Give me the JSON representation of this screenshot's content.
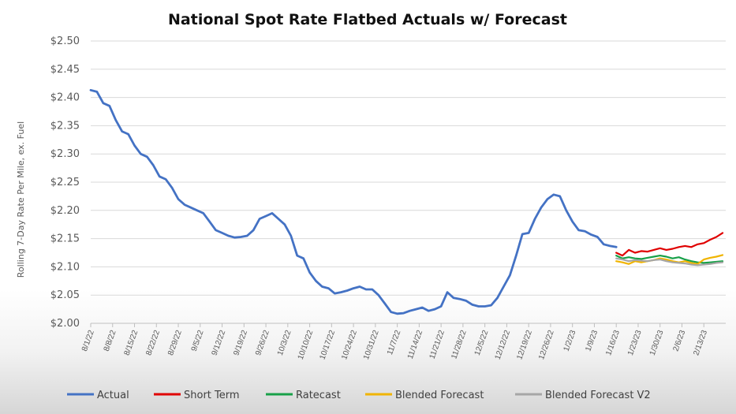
{
  "chart_data": {
    "type": "line",
    "title": "National Spot Rate Flatbed Actuals w/ Forecast",
    "xlabel": "",
    "ylabel": "Rolling 7-Day Rate Per Mile, ex. Fuel",
    "ylim": [
      2.0,
      2.5
    ],
    "yticks": [
      2.0,
      2.05,
      2.1,
      2.15,
      2.2,
      2.25,
      2.3,
      2.35,
      2.4,
      2.45,
      2.5
    ],
    "ytick_labels": [
      "$2.00",
      "$2.05",
      "$2.10",
      "$2.15",
      "$2.20",
      "$2.25",
      "$2.30",
      "$2.35",
      "$2.40",
      "$2.45",
      "$2.50"
    ],
    "x_start": "8/1/22",
    "x_end_day": 203,
    "xtick_days": [
      0,
      7,
      14,
      21,
      28,
      35,
      42,
      49,
      56,
      63,
      70,
      77,
      84,
      91,
      98,
      105,
      112,
      119,
      126,
      133,
      140,
      147,
      154,
      161,
      168,
      175,
      182,
      189,
      196
    ],
    "xtick_labels": [
      "8/1/22",
      "8/8/22",
      "8/15/22",
      "8/22/22",
      "8/29/22",
      "9/5/22",
      "9/12/22",
      "9/19/22",
      "9/26/22",
      "10/3/22",
      "10/10/22",
      "10/17/22",
      "10/24/22",
      "10/31/22",
      "11/7/22",
      "11/14/22",
      "11/21/22",
      "11/28/22",
      "12/5/22",
      "12/12/22",
      "12/19/22",
      "12/26/22",
      "1/2/23",
      "1/9/23",
      "1/16/23",
      "1/23/23",
      "1/30/23",
      "2/6/23",
      "2/13/23"
    ],
    "grid": true,
    "legend_position": "bottom",
    "series": [
      {
        "name": "Actual",
        "color": "#4472C4",
        "x": [
          0,
          2,
          4,
          6,
          8,
          10,
          12,
          14,
          16,
          18,
          20,
          22,
          24,
          26,
          28,
          30,
          32,
          34,
          36,
          38,
          40,
          42,
          44,
          46,
          48,
          50,
          52,
          54,
          56,
          58,
          60,
          62,
          64,
          66,
          68,
          70,
          72,
          74,
          76,
          78,
          80,
          82,
          84,
          86,
          88,
          90,
          92,
          94,
          96,
          98,
          100,
          102,
          104,
          106,
          108,
          110,
          112,
          114,
          116,
          118,
          120,
          122,
          124,
          126,
          128,
          130,
          132,
          134,
          136,
          138,
          140,
          142,
          144,
          146,
          148,
          150,
          152,
          154,
          156,
          158,
          160,
          162,
          164,
          166,
          168
        ],
        "values": [
          2.413,
          2.41,
          2.39,
          2.385,
          2.36,
          2.34,
          2.335,
          2.315,
          2.3,
          2.295,
          2.28,
          2.26,
          2.255,
          2.24,
          2.22,
          2.21,
          2.205,
          2.2,
          2.195,
          2.18,
          2.165,
          2.16,
          2.155,
          2.152,
          2.153,
          2.155,
          2.165,
          2.185,
          2.19,
          2.195,
          2.185,
          2.175,
          2.155,
          2.12,
          2.115,
          2.09,
          2.075,
          2.065,
          2.062,
          2.053,
          2.055,
          2.058,
          2.062,
          2.065,
          2.06,
          2.06,
          2.05,
          2.035,
          2.02,
          2.017,
          2.018,
          2.022,
          2.025,
          2.028,
          2.022,
          2.025,
          2.03,
          2.055,
          2.045,
          2.043,
          2.04,
          2.033,
          2.03,
          2.03,
          2.032,
          2.045,
          2.065,
          2.085,
          2.12,
          2.158,
          2.16,
          2.185,
          2.205,
          2.22,
          2.228,
          2.225,
          2.2,
          2.18,
          2.165,
          2.163,
          2.157,
          2.153,
          2.14,
          2.137,
          2.135
        ]
      },
      {
        "name": "Short Term",
        "color": "#E00000",
        "x": [
          168,
          170,
          172,
          174,
          176,
          178,
          180,
          182,
          184,
          186,
          188,
          190,
          192,
          194,
          196,
          198,
          200,
          202
        ],
        "values": [
          2.125,
          2.12,
          2.13,
          2.125,
          2.128,
          2.127,
          2.13,
          2.133,
          2.13,
          2.132,
          2.135,
          2.137,
          2.135,
          2.14,
          2.142,
          2.148,
          2.153,
          2.16
        ]
      },
      {
        "name": "Ratecast",
        "color": "#18A048",
        "x": [
          168,
          170,
          172,
          174,
          176,
          178,
          180,
          182,
          184,
          186,
          188,
          190,
          192,
          194,
          196,
          198,
          200,
          202
        ],
        "values": [
          2.12,
          2.115,
          2.117,
          2.115,
          2.114,
          2.116,
          2.118,
          2.12,
          2.118,
          2.115,
          2.117,
          2.113,
          2.11,
          2.108,
          2.107,
          2.108,
          2.109,
          2.11
        ]
      },
      {
        "name": "Blended Forecast",
        "color": "#F0B400",
        "x": [
          168,
          170,
          172,
          174,
          176,
          178,
          180,
          182,
          184,
          186,
          188,
          190,
          192,
          194,
          196,
          198,
          200,
          202
        ],
        "values": [
          2.11,
          2.108,
          2.105,
          2.11,
          2.108,
          2.11,
          2.112,
          2.115,
          2.113,
          2.11,
          2.108,
          2.11,
          2.107,
          2.105,
          2.113,
          2.116,
          2.118,
          2.121
        ]
      },
      {
        "name": "Blended Forecast V2",
        "color": "#A6A6A6",
        "x": [
          168,
          170,
          172,
          174,
          176,
          178,
          180,
          182,
          184,
          186,
          188,
          190,
          192,
          194,
          196,
          198,
          200,
          202
        ],
        "values": [
          2.115,
          2.113,
          2.11,
          2.112,
          2.111,
          2.11,
          2.112,
          2.113,
          2.11,
          2.108,
          2.107,
          2.106,
          2.104,
          2.103,
          2.104,
          2.105,
          2.107,
          2.108
        ]
      }
    ]
  }
}
